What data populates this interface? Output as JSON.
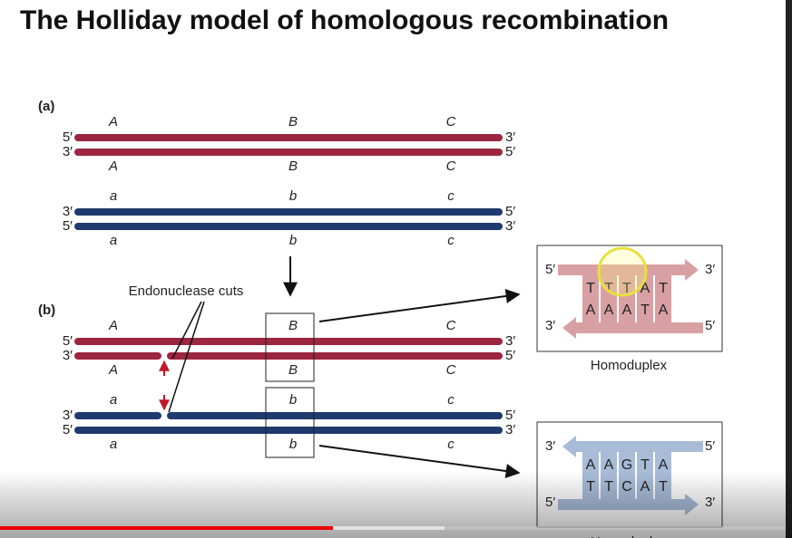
{
  "title": "The Holliday model of homologous recombination",
  "panel_a": {
    "label": "(a)",
    "red_top": [
      "A",
      "B",
      "C"
    ],
    "red_bottom": [
      "A",
      "B",
      "C"
    ],
    "blue_top": [
      "a",
      "b",
      "c"
    ],
    "blue_bottom": [
      "a",
      "b",
      "c"
    ],
    "red_left_ends": [
      "5′",
      "3′"
    ],
    "red_right_ends": [
      "3′",
      "5′"
    ],
    "blue_left_ends": [
      "3′",
      "5′"
    ],
    "blue_right_ends": [
      "5′",
      "3′"
    ]
  },
  "panel_b": {
    "label": "(b)",
    "annotation": "Endonuclease cuts",
    "red_top": [
      "A",
      "B",
      "C"
    ],
    "red_bottom": [
      "A",
      "B",
      "C"
    ],
    "blue_top": [
      "a",
      "b",
      "c"
    ],
    "blue_bottom": [
      "a",
      "b",
      "c"
    ],
    "red_left_ends": [
      "5′",
      "3′"
    ],
    "red_right_ends": [
      "3′",
      "5′"
    ],
    "blue_left_ends": [
      "3′",
      "5′"
    ],
    "blue_right_ends": [
      "5′",
      "3′"
    ]
  },
  "homoduplex_1": {
    "top_ends": [
      "5′",
      "3′"
    ],
    "bottom_ends": [
      "3′",
      "5′"
    ],
    "top_bases": [
      "T",
      "T",
      "T",
      "A",
      "T"
    ],
    "bottom_bases": [
      "A",
      "A",
      "A",
      "T",
      "A"
    ],
    "caption": "Homoduplex"
  },
  "homoduplex_2": {
    "top_ends": [
      "3′",
      "5′"
    ],
    "bottom_ends": [
      "5′",
      "3′"
    ],
    "top_bases": [
      "A",
      "A",
      "G",
      "T",
      "A"
    ],
    "bottom_bases": [
      "T",
      "T",
      "C",
      "A",
      "T"
    ],
    "caption": "Homoduplex"
  }
}
